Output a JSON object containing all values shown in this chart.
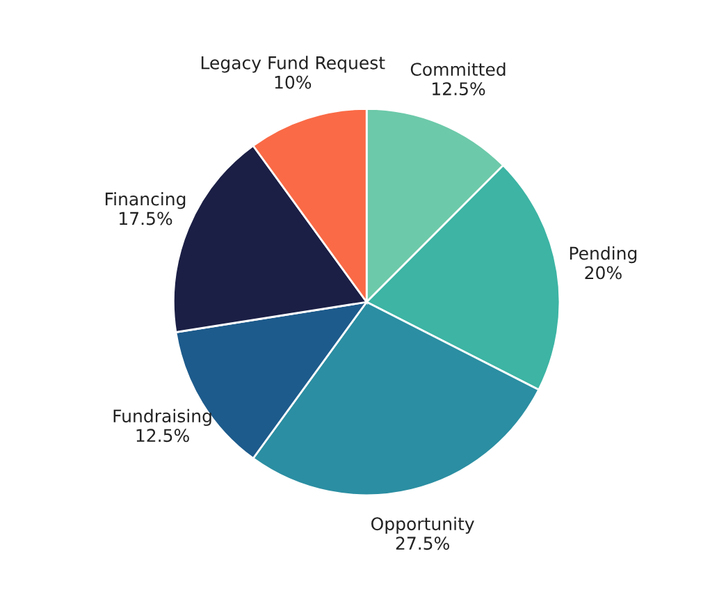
{
  "chart_data": {
    "type": "pie",
    "categories": [
      "Committed",
      "Pending",
      "Opportunity",
      "Fundraising",
      "Financing",
      "Legacy Fund Request"
    ],
    "values": [
      12.5,
      20,
      27.5,
      12.5,
      17.5,
      10
    ],
    "value_labels": [
      "12.5%",
      "20%",
      "27.5%",
      "12.5%",
      "17.5%",
      "10%"
    ],
    "colors": [
      "#6cc9a9",
      "#3db4a4",
      "#2b8ea2",
      "#1d5b8c",
      "#1b1f45",
      "#fa6a46"
    ]
  }
}
